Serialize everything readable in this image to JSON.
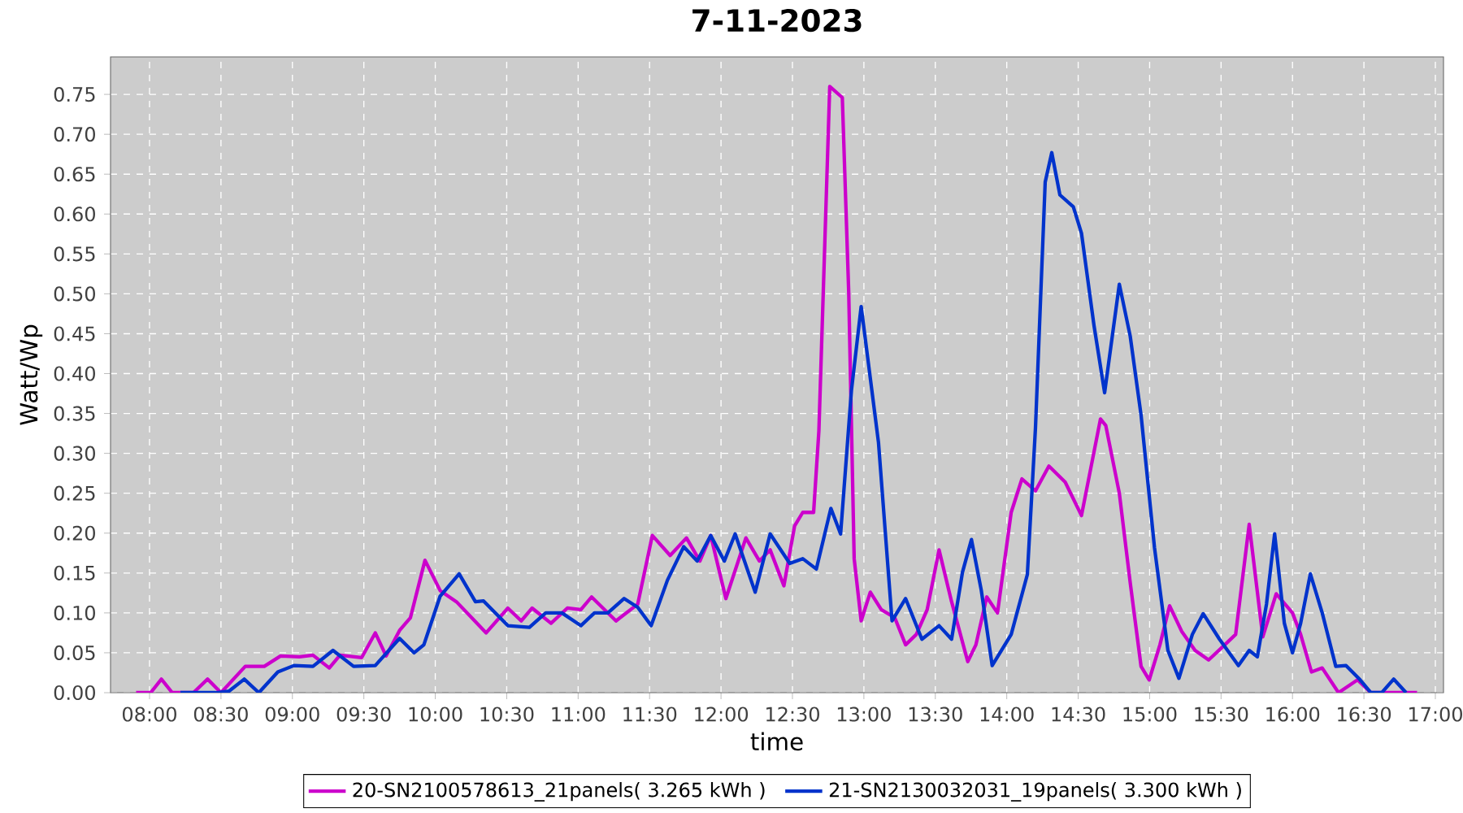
{
  "chart_data": {
    "type": "line",
    "title": "7-11-2023",
    "xlabel": "time",
    "ylabel": "Watt/Wp",
    "xlim": [
      7.727,
      17.057
    ],
    "ylim": [
      0,
      0.797
    ],
    "xticks": [
      {
        "value": 8,
        "label": "08:00"
      },
      {
        "value": 8.5,
        "label": "08:30"
      },
      {
        "value": 9,
        "label": "09:00"
      },
      {
        "value": 9.5,
        "label": "09:30"
      },
      {
        "value": 10,
        "label": "10:00"
      },
      {
        "value": 10.5,
        "label": "10:30"
      },
      {
        "value": 11,
        "label": "11:00"
      },
      {
        "value": 11.5,
        "label": "11:30"
      },
      {
        "value": 12,
        "label": "12:00"
      },
      {
        "value": 12.5,
        "label": "12:30"
      },
      {
        "value": 13,
        "label": "13:00"
      },
      {
        "value": 13.5,
        "label": "13:30"
      },
      {
        "value": 14,
        "label": "14:00"
      },
      {
        "value": 14.5,
        "label": "14:30"
      },
      {
        "value": 15,
        "label": "15:00"
      },
      {
        "value": 15.5,
        "label": "15:30"
      },
      {
        "value": 16,
        "label": "16:00"
      },
      {
        "value": 16.5,
        "label": "16:30"
      },
      {
        "value": 17,
        "label": "17:00"
      }
    ],
    "yticks": [
      {
        "value": 0,
        "label": "0.00"
      },
      {
        "value": 0.05,
        "label": "0.05"
      },
      {
        "value": 0.1,
        "label": "0.10"
      },
      {
        "value": 0.15,
        "label": "0.15"
      },
      {
        "value": 0.2,
        "label": "0.20"
      },
      {
        "value": 0.25,
        "label": "0.25"
      },
      {
        "value": 0.3,
        "label": "0.30"
      },
      {
        "value": 0.35,
        "label": "0.35"
      },
      {
        "value": 0.4,
        "label": "0.40"
      },
      {
        "value": 0.45,
        "label": "0.45"
      },
      {
        "value": 0.5,
        "label": "0.50"
      },
      {
        "value": 0.55,
        "label": "0.55"
      },
      {
        "value": 0.6,
        "label": "0.60"
      },
      {
        "value": 0.65,
        "label": "0.65"
      },
      {
        "value": 0.7,
        "label": "0.70"
      },
      {
        "value": 0.75,
        "label": "0.75"
      }
    ],
    "grid": true,
    "legend": "bottom",
    "marker": "none",
    "line_style": "solid",
    "series": [
      {
        "name": "20-SN2100578613_21panels( 3.265 kWh )",
        "color": "#cc00cc",
        "x": [
          7.906,
          8.008,
          8.083,
          8.159,
          8.307,
          8.406,
          8.5,
          8.67,
          8.803,
          8.917,
          9.049,
          9.144,
          9.258,
          9.333,
          9.485,
          9.58,
          9.656,
          9.75,
          9.826,
          9.928,
          10.034,
          10.148,
          10.356,
          10.508,
          10.602,
          10.678,
          10.81,
          10.924,
          11.019,
          11.094,
          11.265,
          11.417,
          11.519,
          11.644,
          11.758,
          11.852,
          11.928,
          12.034,
          12.174,
          12.269,
          12.344,
          12.44,
          12.515,
          12.572,
          12.648,
          12.685,
          12.761,
          12.849,
          12.894,
          12.932,
          12.981,
          13.045,
          13.122,
          13.216,
          13.292,
          13.367,
          13.443,
          13.526,
          13.614,
          13.727,
          13.784,
          13.86,
          13.935,
          14.031,
          14.106,
          14.201,
          14.295,
          14.409,
          14.523,
          14.656,
          14.693,
          14.788,
          14.864,
          14.94,
          14.997,
          15.072,
          15.14,
          15.224,
          15.318,
          15.413,
          15.526,
          15.602,
          15.697,
          15.792,
          15.886,
          16.0,
          16.057,
          16.133,
          16.208,
          16.322,
          16.455,
          16.549,
          16.872
        ],
        "values": [
          0,
          0,
          0.017,
          0,
          0,
          0.017,
          0,
          0.033,
          0.033,
          0.046,
          0.045,
          0.047,
          0.031,
          0.047,
          0.044,
          0.075,
          0.046,
          0.078,
          0.094,
          0.166,
          0.128,
          0.114,
          0.075,
          0.106,
          0.09,
          0.106,
          0.087,
          0.106,
          0.104,
          0.12,
          0.09,
          0.111,
          0.197,
          0.172,
          0.194,
          0.165,
          0.197,
          0.118,
          0.194,
          0.165,
          0.179,
          0.134,
          0.209,
          0.226,
          0.226,
          0.328,
          0.76,
          0.746,
          0.501,
          0.168,
          0.09,
          0.126,
          0.104,
          0.094,
          0.06,
          0.073,
          0.104,
          0.179,
          0.114,
          0.039,
          0.06,
          0.12,
          0.1,
          0.226,
          0.268,
          0.253,
          0.284,
          0.264,
          0.222,
          0.343,
          0.335,
          0.25,
          0.138,
          0.033,
          0.016,
          0.06,
          0.109,
          0.077,
          0.053,
          0.041,
          0.06,
          0.073,
          0.211,
          0.07,
          0.124,
          0.1,
          0.073,
          0.026,
          0.031,
          0,
          0.016,
          0,
          0
        ]
      },
      {
        "name": "21-SN2130032031_19panels( 3.300 kWh )",
        "color": "#0033cc",
        "x": [
          8.216,
          8.463,
          8.557,
          8.663,
          8.765,
          8.898,
          9.011,
          9.144,
          9.284,
          9.428,
          9.58,
          9.75,
          9.852,
          9.92,
          10.034,
          10.167,
          10.281,
          10.338,
          10.508,
          10.659,
          10.773,
          10.886,
          11.019,
          11.114,
          11.208,
          11.322,
          11.417,
          11.511,
          11.625,
          11.739,
          11.833,
          11.928,
          12.023,
          12.099,
          12.239,
          12.344,
          12.481,
          12.572,
          12.667,
          12.769,
          12.837,
          12.913,
          12.981,
          13.102,
          13.197,
          13.292,
          13.406,
          13.526,
          13.614,
          13.69,
          13.753,
          13.822,
          13.898,
          14.031,
          14.144,
          14.201,
          14.269,
          14.315,
          14.372,
          14.466,
          14.523,
          14.61,
          14.685,
          14.788,
          14.864,
          14.94,
          15.034,
          15.128,
          15.205,
          15.299,
          15.375,
          15.489,
          15.622,
          15.697,
          15.754,
          15.818,
          15.875,
          15.943,
          16.0,
          16.057,
          16.125,
          16.208,
          16.303,
          16.375,
          16.474,
          16.549,
          16.625,
          16.708,
          16.795
        ],
        "values": [
          0,
          0,
          0.002,
          0.017,
          0,
          0.026,
          0.034,
          0.033,
          0.053,
          0.033,
          0.034,
          0.068,
          0.05,
          0.06,
          0.121,
          0.149,
          0.114,
          0.115,
          0.084,
          0.082,
          0.1,
          0.1,
          0.084,
          0.1,
          0.1,
          0.118,
          0.107,
          0.084,
          0.141,
          0.183,
          0.165,
          0.197,
          0.165,
          0.199,
          0.126,
          0.199,
          0.162,
          0.168,
          0.155,
          0.231,
          0.199,
          0.379,
          0.484,
          0.314,
          0.09,
          0.118,
          0.067,
          0.084,
          0.067,
          0.151,
          0.192,
          0.128,
          0.034,
          0.073,
          0.148,
          0.332,
          0.64,
          0.677,
          0.624,
          0.609,
          0.576,
          0.461,
          0.376,
          0.512,
          0.447,
          0.348,
          0.182,
          0.053,
          0.018,
          0.073,
          0.099,
          0.067,
          0.034,
          0.053,
          0.045,
          0.111,
          0.199,
          0.087,
          0.05,
          0.087,
          0.149,
          0.1,
          0.033,
          0.034,
          0.016,
          0,
          0,
          0.017,
          0
        ]
      }
    ]
  }
}
